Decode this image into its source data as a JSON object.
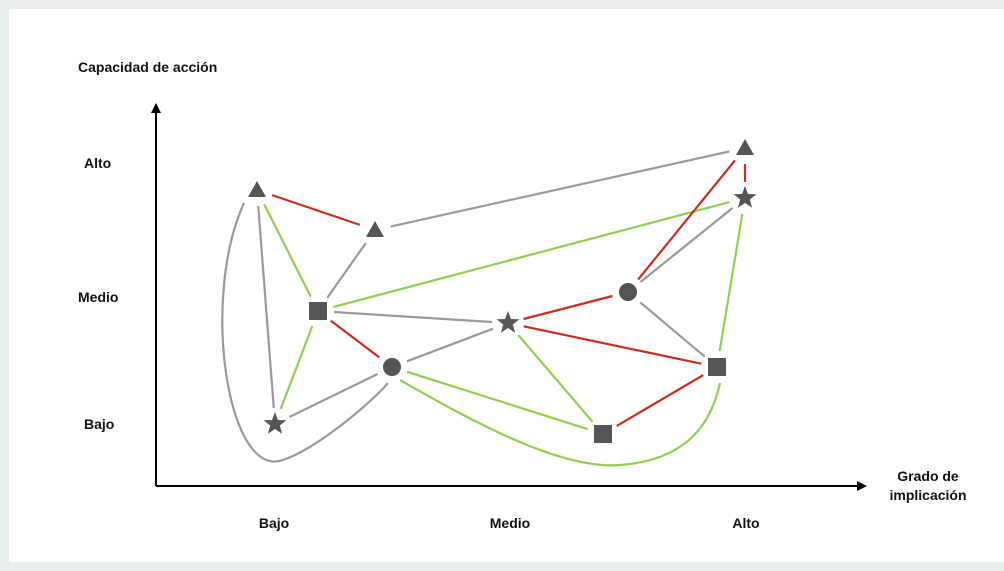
{
  "axes": {
    "y_title": "Capacidad de acción",
    "x_title_line1": "Grado de",
    "x_title_line2": "implicación",
    "y_ticks": [
      "Alto",
      "Medio",
      "Bajo"
    ],
    "x_ticks": [
      "Bajo",
      "Medio",
      "Alto"
    ]
  },
  "colors": {
    "background": "#e8eeec",
    "panel": "#ffffff",
    "axis": "#000000",
    "node": "#555555",
    "link_gray": "#999999",
    "link_red": "#cc2b1d",
    "link_green": "#8fd14f"
  },
  "nodes": [
    {
      "id": "tri1",
      "shape": "triangle"
    },
    {
      "id": "tri2",
      "shape": "triangle"
    },
    {
      "id": "tri3",
      "shape": "triangle"
    },
    {
      "id": "star1",
      "shape": "star"
    },
    {
      "id": "star2",
      "shape": "star"
    },
    {
      "id": "star3",
      "shape": "star"
    },
    {
      "id": "sq1",
      "shape": "square"
    },
    {
      "id": "sq2",
      "shape": "square"
    },
    {
      "id": "sq3",
      "shape": "square"
    },
    {
      "id": "circ1",
      "shape": "circle"
    },
    {
      "id": "circ2",
      "shape": "circle"
    }
  ],
  "links": [
    {
      "from": "tri1",
      "to": "tri2",
      "color": "red"
    },
    {
      "from": "tri2",
      "to": "tri3",
      "color": "gray"
    },
    {
      "from": "tri2",
      "to": "sq1",
      "color": "gray"
    },
    {
      "from": "tri1",
      "to": "sq1",
      "color": "green"
    },
    {
      "from": "tri1",
      "to": "star1",
      "color": "gray"
    },
    {
      "from": "tri1",
      "to": "circ1",
      "color": "gray",
      "curved": true
    },
    {
      "from": "sq1",
      "to": "star1",
      "color": "green"
    },
    {
      "from": "sq1",
      "to": "star3",
      "color": "green"
    },
    {
      "from": "sq1",
      "to": "star2",
      "color": "gray"
    },
    {
      "from": "sq1",
      "to": "circ1",
      "color": "red"
    },
    {
      "from": "star1",
      "to": "circ1",
      "color": "gray"
    },
    {
      "from": "circ1",
      "to": "star2",
      "color": "gray"
    },
    {
      "from": "circ1",
      "to": "sq2",
      "color": "green"
    },
    {
      "from": "circ1",
      "to": "sq3",
      "color": "green",
      "curved": true
    },
    {
      "from": "star2",
      "to": "circ2",
      "color": "red"
    },
    {
      "from": "star2",
      "to": "sq2",
      "color": "green"
    },
    {
      "from": "star2",
      "to": "sq3",
      "color": "red"
    },
    {
      "from": "sq2",
      "to": "sq3",
      "color": "red"
    },
    {
      "from": "circ2",
      "to": "tri3",
      "color": "red"
    },
    {
      "from": "circ2",
      "to": "star3",
      "color": "gray"
    },
    {
      "from": "circ2",
      "to": "sq3",
      "color": "gray"
    },
    {
      "from": "tri3",
      "to": "star3",
      "color": "red"
    },
    {
      "from": "star3",
      "to": "sq3",
      "color": "green"
    }
  ]
}
